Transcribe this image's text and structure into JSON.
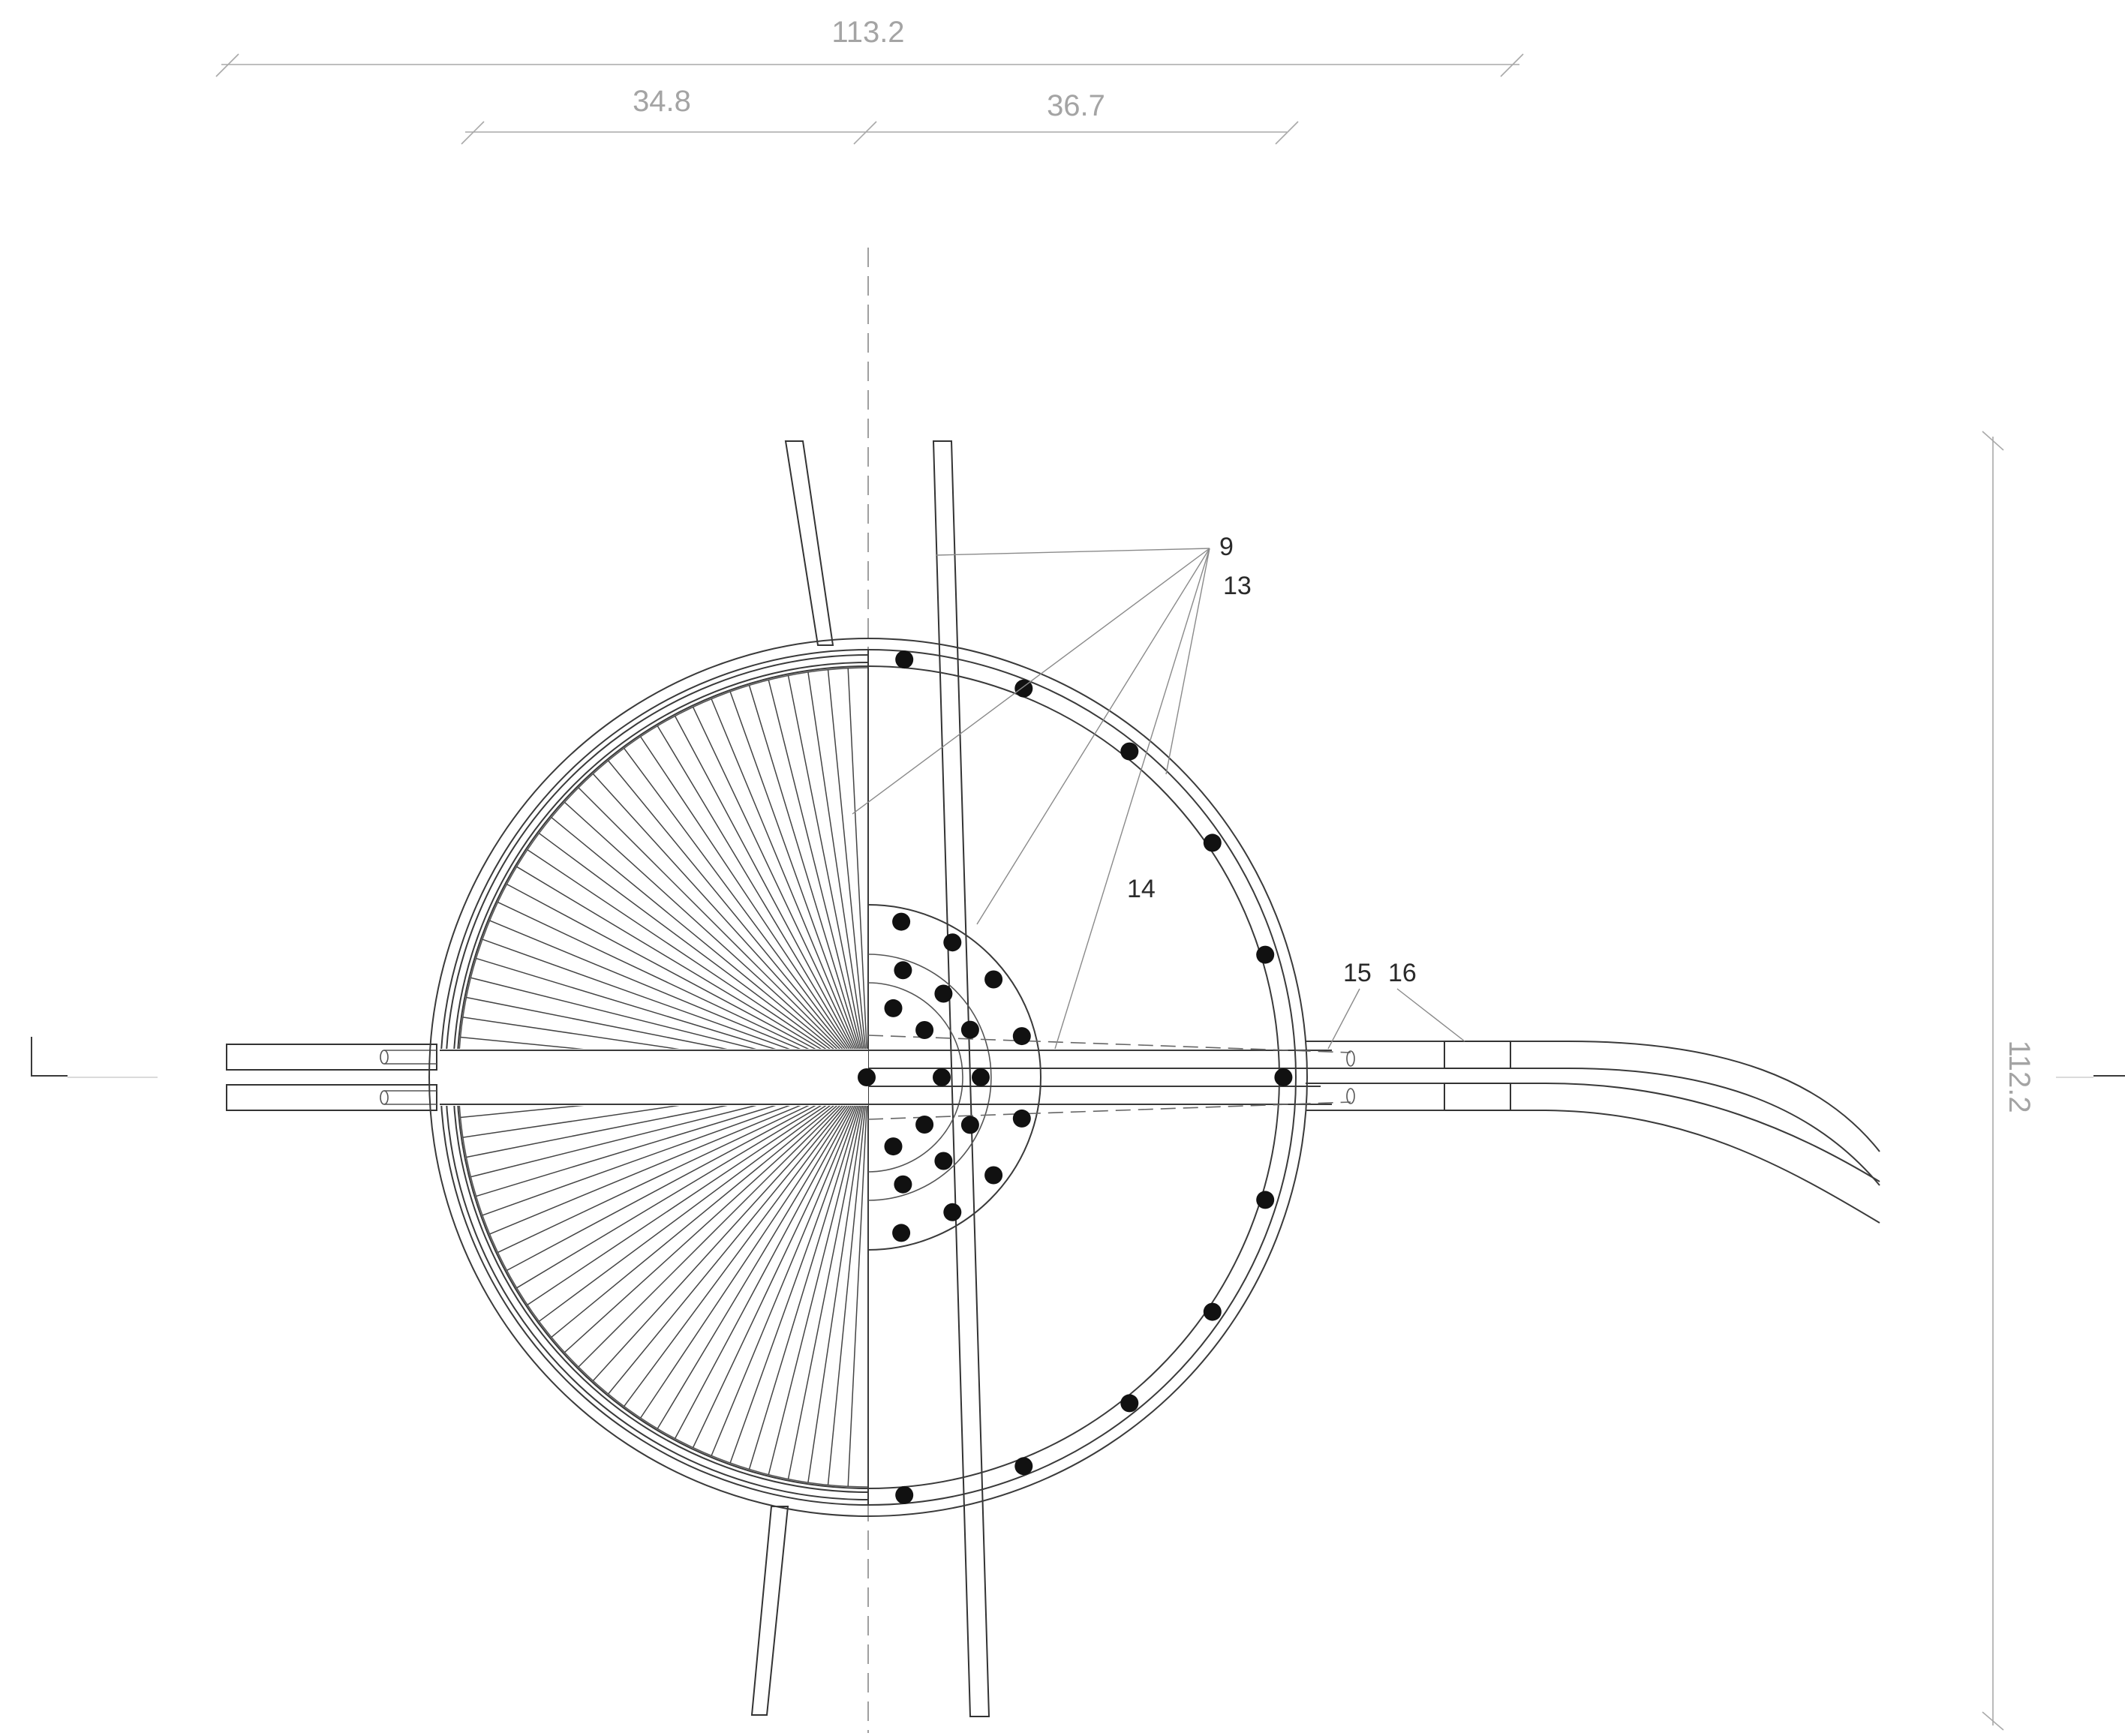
{
  "dimensions": {
    "overall_width": "113.2",
    "left_part": "34.8",
    "right_part": "36.7",
    "overall_height": "112.2"
  },
  "labels": {
    "nine": "9",
    "thirteen": "13",
    "fourteen": "14",
    "fifteen": "15",
    "sixteen": "16"
  }
}
